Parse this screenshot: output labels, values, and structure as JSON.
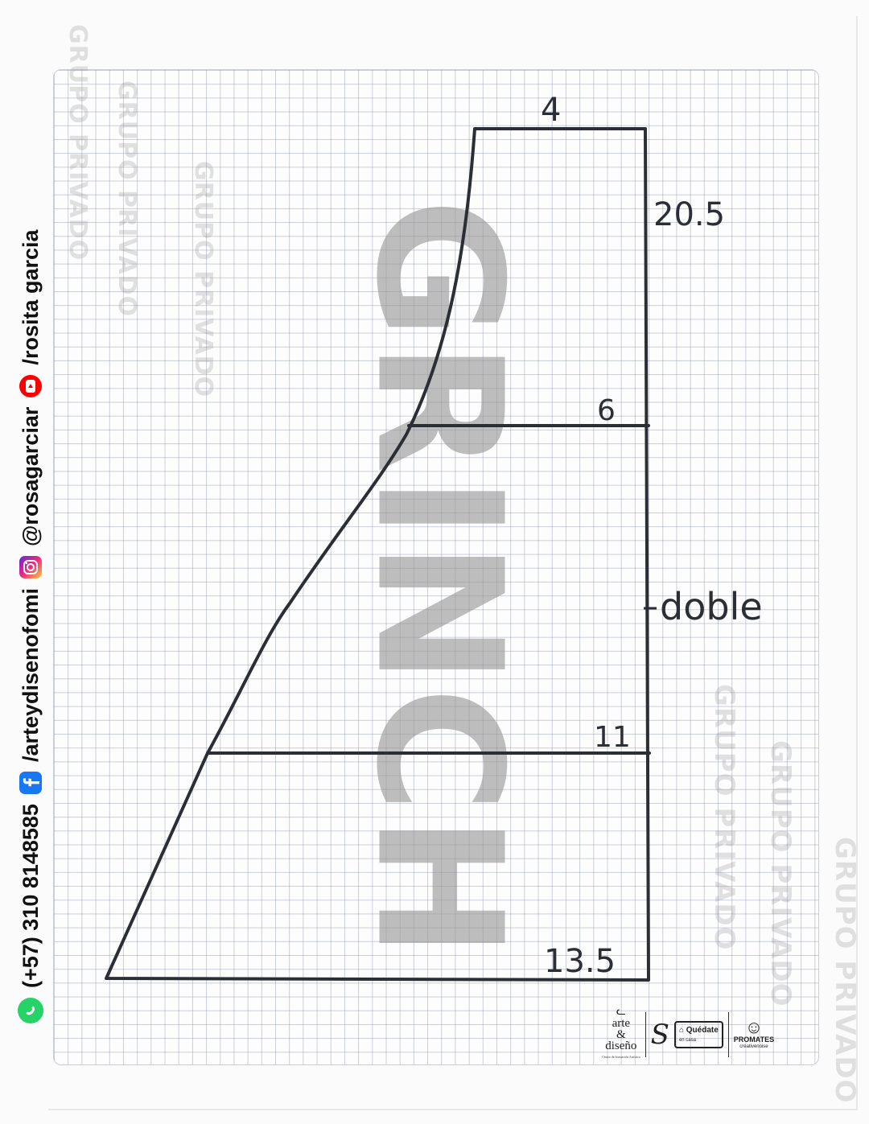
{
  "watermark": {
    "main": "GRINCH",
    "private": "GRUPO PRIVADO"
  },
  "contact": {
    "phone": "(+57) 310 8148585",
    "facebook": "/arteydisenofomi",
    "instagram": "@rosagarciar",
    "youtube": "/rosita garcia",
    "icons": [
      "whatsapp-icon",
      "facebook-icon",
      "instagram-icon",
      "youtube-icon"
    ]
  },
  "pattern": {
    "labels": {
      "top_width": "4",
      "height": "20.5",
      "mid_width": "6",
      "fold": "doble",
      "lower_width": "11",
      "bottom_width": "13.5"
    },
    "line_color": "#2b2e35"
  },
  "logos": {
    "arte": "arte",
    "amp": "&",
    "diseno": "diseño",
    "arte_sub": "Centro de formación Artística",
    "quedate": "Quédate",
    "quedate_sub": "en casa",
    "promates": "PROMATES",
    "promates_sub": "creativenoise"
  }
}
